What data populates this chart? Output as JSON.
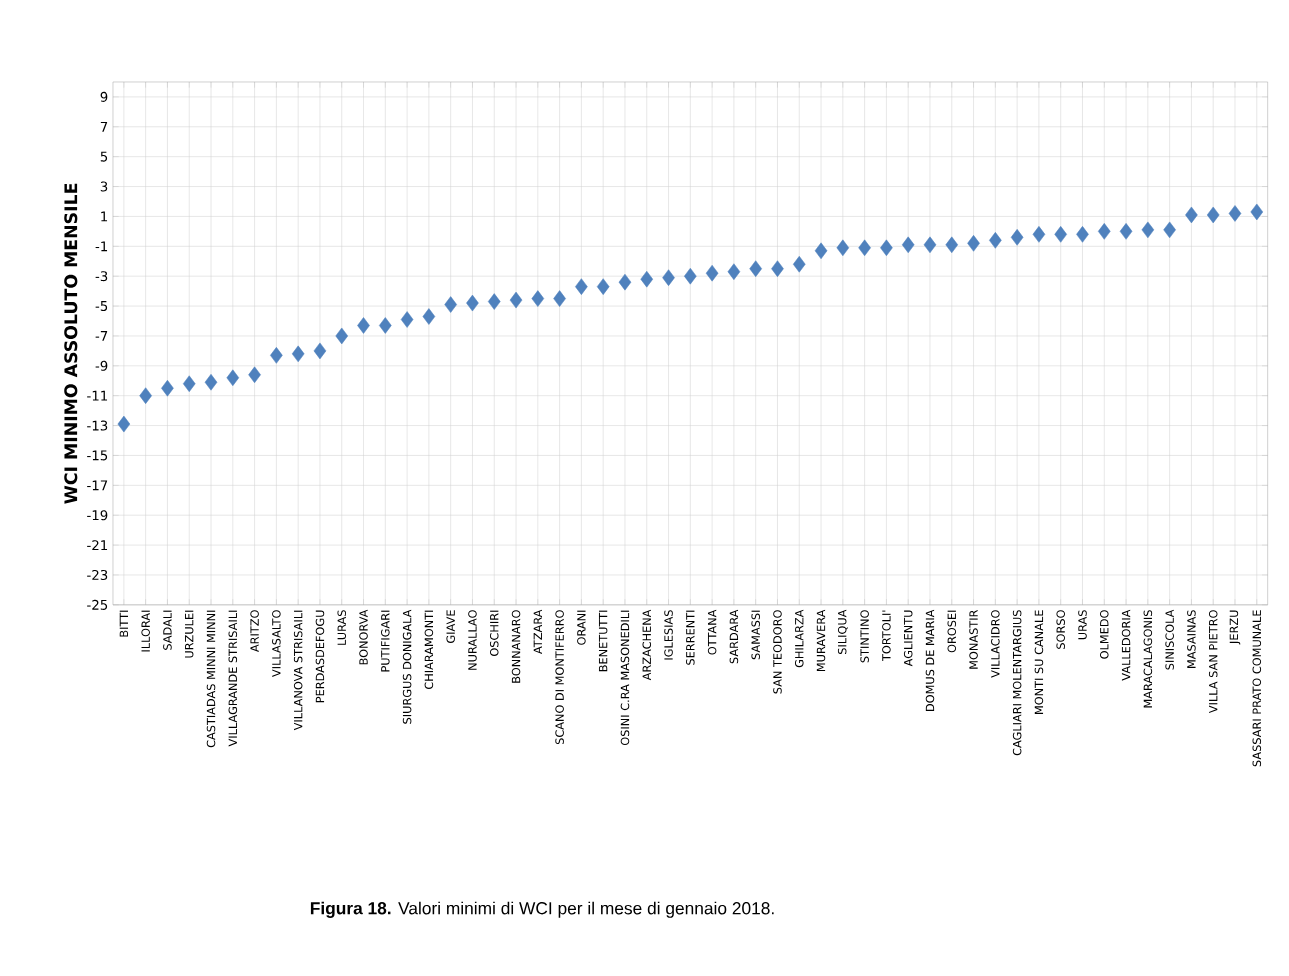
{
  "chart_data": {
    "type": "scatter",
    "ylabel": "WCI MINIMO ASSOLUTO MENSILE",
    "annotations": [
      "**Figura 18.** Valori minimi di WCI per il mese di gennaio 2018."
    ],
    "categories": [
      "BITTI",
      "ILLORAI",
      "SADALI",
      "URZULEI",
      "CASTIADAS MINNI MINNI",
      "VILLAGRANDE STRISAILI",
      "ARITZO",
      "VILLASALTO",
      "VILLANOVA STRISAILI",
      "PERDASDEFOGU",
      "LURAS",
      "BONORVA",
      "PUTIFIGARI",
      "SIURGUS DONIGALA",
      "CHIARAMONTI",
      "GIAVE",
      "NURALLAO",
      "OSCHIRI",
      "BONNANARO",
      "ATZARA",
      "SCANO DI MONTIFERRO",
      "ORANI",
      "BENETUTTI",
      "OSINI C.RA MASONEDILI",
      "ARZACHENA",
      "IGLESIAS",
      "SERRENTI",
      "OTTANA",
      "SARDARA",
      "SAMASSI",
      "SAN TEODORO",
      "GHILARZA",
      "MURAVERA",
      "SILIQUA",
      "STINTINO",
      "TORTOLI'",
      "AGLIENTU",
      "DOMUS DE MARIA",
      "OROSEI",
      "MONASTIR",
      "VILLACIDRO",
      "CAGLIARI MOLENTARGIUS",
      "MONTI SU CANALE",
      "SORSO",
      "URAS",
      "OLMEDO",
      "VALLEDORIA",
      "MARACALAGONIS",
      "SINISCOLA",
      "MASAINAS",
      "VILLA SAN PIETRO",
      "JERZU",
      "SASSARI PRATO COMUNALE"
    ],
    "values": [
      -12.9,
      -11.0,
      -10.5,
      -10.2,
      -10.1,
      -9.8,
      -9.6,
      -8.3,
      -8.2,
      -8.0,
      -7.0,
      -6.3,
      -6.3,
      -5.9,
      -5.7,
      -4.9,
      -4.8,
      -4.7,
      -4.6,
      -4.5,
      -4.5,
      -3.7,
      -3.7,
      -3.4,
      -3.2,
      -3.1,
      -3.0,
      -2.8,
      -2.7,
      -2.5,
      -2.5,
      -2.2,
      -1.3,
      -1.1,
      -1.1,
      -1.1,
      -0.9,
      -0.9,
      -0.9,
      -0.8,
      -0.6,
      -0.4,
      -0.2,
      -0.2,
      -0.2,
      0.0,
      0.0,
      0.1,
      0.1,
      1.1,
      1.1,
      1.2,
      1.3
    ],
    "color": "#4f81bd",
    "marker": "diamond",
    "grid": true,
    "ylim": [
      -25,
      10
    ],
    "yticks": [
      -25,
      -23,
      -21,
      -19,
      -17,
      -15,
      -13,
      -11,
      -9,
      -7,
      -5,
      -3,
      -1,
      1,
      3,
      5,
      7,
      9
    ]
  }
}
